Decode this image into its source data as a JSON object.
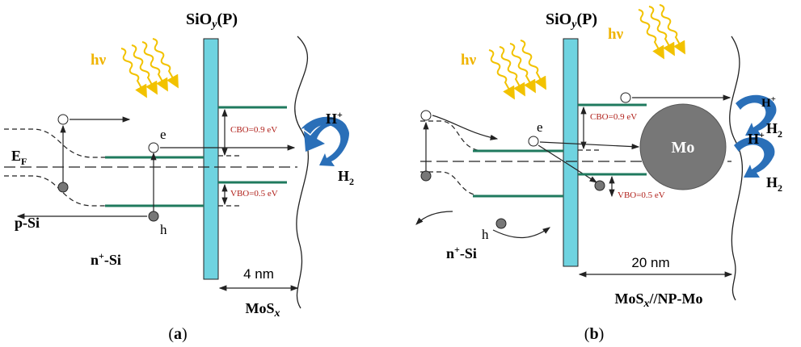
{
  "panel_a": {
    "oxide": {
      "base": "SiO",
      "sub": "y",
      "tail": "(P)"
    },
    "photon": "hν",
    "fermi": {
      "base": "E",
      "sub": "F"
    },
    "p_si": "p-Si",
    "n_si": {
      "base": "n",
      "sup": "+",
      "tail": "-Si"
    },
    "electron": "e",
    "hole": "h",
    "cbo": "CBO=0.9 eV",
    "vbo": "VBO=0.5 eV",
    "proton": {
      "base": "H",
      "sup": "+"
    },
    "hydrogen": {
      "base": "H",
      "sub": "2"
    },
    "thickness": "4 nm",
    "layer": {
      "base": "MoS",
      "sub": "x"
    },
    "caption": {
      "open": "(",
      "letter": "a",
      "close": ")"
    }
  },
  "panel_b": {
    "oxide": {
      "base": "SiO",
      "sub": "y",
      "tail": "(P)"
    },
    "photon_1": "hν",
    "photon_2": "hν",
    "n_si": {
      "base": "n",
      "sup": "+",
      "tail": "-Si"
    },
    "electron": "e",
    "hole": "h",
    "cbo": "CBO=0.9 eV",
    "vbo": "VBO=0.5 eV",
    "particle": "Mo",
    "proton_1": {
      "base": "H",
      "sup": "+"
    },
    "hydrogen_1": {
      "base": "H",
      "sub": "2"
    },
    "proton_2": {
      "base": "H",
      "sup": "+"
    },
    "hydrogen_2": {
      "base": "H",
      "sub": "2"
    },
    "thickness": "20 nm",
    "layer": {
      "base": "MoS",
      "sub": "x",
      "tail": "//NP-Mo"
    },
    "caption": {
      "open": "(",
      "letter": "b",
      "close": ")"
    }
  }
}
